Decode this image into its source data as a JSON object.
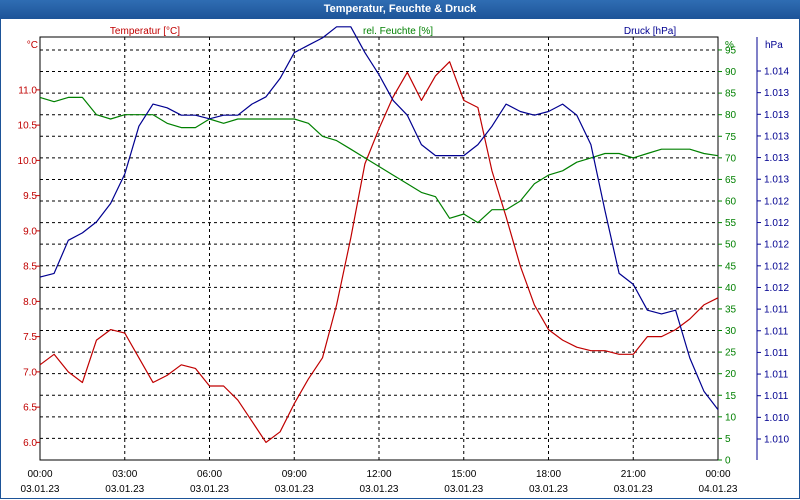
{
  "window": {
    "title": "Temperatur, Feuchte & Druck"
  },
  "chart_data": {
    "type": "line",
    "title": "Temperatur, Feuchte & Druck",
    "xlabel": "",
    "grid": true,
    "x": [
      "00:00",
      "00:30",
      "01:00",
      "01:30",
      "02:00",
      "02:30",
      "03:00",
      "03:30",
      "04:00",
      "04:30",
      "05:00",
      "05:30",
      "06:00",
      "06:30",
      "07:00",
      "07:30",
      "08:00",
      "08:30",
      "09:00",
      "09:30",
      "10:00",
      "10:30",
      "11:00",
      "11:30",
      "12:00",
      "12:30",
      "13:00",
      "13:30",
      "14:00",
      "14:30",
      "15:00",
      "15:30",
      "16:00",
      "16:30",
      "17:00",
      "17:30",
      "18:00",
      "18:30",
      "19:00",
      "19:30",
      "20:00",
      "20:30",
      "21:00",
      "21:30",
      "22:00",
      "22:30",
      "23:00",
      "23:30",
      "24:00"
    ],
    "x_ticks": [
      {
        "time": "00:00",
        "date": "03.01.23"
      },
      {
        "time": "03:00",
        "date": "03.01.23"
      },
      {
        "time": "06:00",
        "date": "03.01.23"
      },
      {
        "time": "09:00",
        "date": "03.01.23"
      },
      {
        "time": "12:00",
        "date": "03.01.23"
      },
      {
        "time": "15:00",
        "date": "03.01.23"
      },
      {
        "time": "18:00",
        "date": "03.01.23"
      },
      {
        "time": "21:00",
        "date": "03.01.23"
      },
      {
        "time": "00:00",
        "date": "04.01.23"
      }
    ],
    "axes": {
      "temperature": {
        "label": "Temperatur [°C]",
        "unit": "°C",
        "color": "#c00000",
        "ylim": [
          5.75,
          11.75
        ],
        "ticks": [
          "6.0",
          "6.5",
          "7.0",
          "7.5",
          "8.0",
          "8.5",
          "9.0",
          "9.5",
          "10.0",
          "10.5",
          "11.0"
        ]
      },
      "humidity": {
        "label": "rel. Feuchte [%]",
        "unit": "%",
        "color": "#008000",
        "ylim": [
          0,
          98
        ],
        "ticks": [
          "0",
          "5",
          "10",
          "15",
          "20",
          "25",
          "30",
          "35",
          "40",
          "45",
          "50",
          "55",
          "60",
          "65",
          "70",
          "75",
          "80",
          "85",
          "90",
          "95"
        ]
      },
      "pressure": {
        "label": "Druck [hPa]",
        "unit": "hPa",
        "color": "#000090",
        "ticks": [
          "1.010",
          "1.010",
          "1.011",
          "1.011",
          "1.011",
          "1.011",
          "1.011",
          "1.012",
          "1.012",
          "1.012",
          "1.012",
          "1.012",
          "1.013",
          "1.013",
          "1.013",
          "1.013",
          "1.013",
          "1.014"
        ]
      }
    },
    "series": [
      {
        "name": "Temperatur [°C]",
        "axis": "temperature",
        "color": "#c00000",
        "values": [
          7.1,
          7.25,
          7.0,
          6.85,
          7.45,
          7.6,
          7.55,
          7.2,
          6.85,
          6.95,
          7.1,
          7.05,
          6.8,
          6.8,
          6.6,
          6.3,
          6.0,
          6.15,
          6.55,
          6.9,
          7.2,
          7.95,
          8.9,
          9.95,
          10.45,
          10.9,
          11.25,
          10.85,
          11.2,
          11.4,
          10.85,
          10.75,
          9.85,
          9.2,
          8.5,
          7.95,
          7.6,
          7.45,
          7.35,
          7.3,
          7.3,
          7.25,
          7.25,
          7.5,
          7.5,
          7.6,
          7.75,
          7.95,
          8.05
        ]
      },
      {
        "name": "rel. Feuchte [%]",
        "axis": "humidity",
        "color": "#008000",
        "values": [
          84,
          83,
          84,
          84,
          80,
          79,
          80,
          80,
          80,
          78,
          77,
          77,
          79,
          78,
          79,
          79,
          79,
          79,
          79,
          78,
          75,
          74,
          72,
          70,
          68,
          66,
          64,
          62,
          61,
          56,
          57,
          55,
          58,
          58,
          60,
          64,
          66,
          67,
          69,
          70,
          71,
          71,
          70,
          71,
          72,
          72,
          72,
          71,
          70.5
        ]
      },
      {
        "name": "Druck [hPa]",
        "axis": "pressure",
        "color": "#000090",
        "scale": "relative (0 = lowest, 1 = highest)",
        "values": [
          0.44,
          0.45,
          0.54,
          0.56,
          0.59,
          0.64,
          0.72,
          0.85,
          0.91,
          0.9,
          0.88,
          0.88,
          0.87,
          0.88,
          0.88,
          0.91,
          0.93,
          0.98,
          1.05,
          1.07,
          1.09,
          1.12,
          1.12,
          1.05,
          0.99,
          0.92,
          0.88,
          0.8,
          0.77,
          0.77,
          0.77,
          0.8,
          0.85,
          0.91,
          0.89,
          0.88,
          0.89,
          0.91,
          0.88,
          0.8,
          0.62,
          0.45,
          0.42,
          0.35,
          0.34,
          0.35,
          0.22,
          0.13,
          0.08
        ]
      }
    ]
  }
}
